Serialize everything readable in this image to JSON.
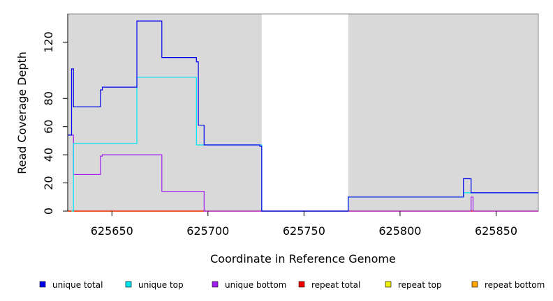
{
  "chart_data": {
    "type": "line",
    "title": "",
    "xlabel": "Coordinate in Reference Genome",
    "ylabel": "Read Coverage Depth",
    "xlim": [
      625627,
      625872
    ],
    "ylim": [
      0,
      140
    ],
    "x_ticks": [
      625650,
      625700,
      625750,
      625800,
      625850
    ],
    "x_tick_labels": [
      "625650",
      "625700",
      "625750",
      "625800",
      "625850"
    ],
    "y_ticks": [
      0,
      20,
      40,
      60,
      80,
      120
    ],
    "y_tick_labels": [
      "0",
      "20",
      "40",
      "60",
      "80",
      "120"
    ],
    "grid": false,
    "legend_position": "bottom",
    "shaded_regions": [
      {
        "x0": 625627,
        "x1": 625728,
        "color": "#d9d9d9"
      },
      {
        "x0": 625773,
        "x1": 625872,
        "color": "#d9d9d9"
      }
    ],
    "series": [
      {
        "name": "unique total",
        "color": "#0000ee",
        "steps": [
          [
            625627,
            54
          ],
          [
            625629,
            101
          ],
          [
            625630,
            74
          ],
          [
            625644,
            86
          ],
          [
            625645,
            88
          ],
          [
            625663,
            135
          ],
          [
            625676,
            109
          ],
          [
            625694,
            106
          ],
          [
            625695,
            61
          ],
          [
            625698,
            47
          ],
          [
            625727,
            46
          ],
          [
            625728,
            0
          ],
          [
            625773,
            10
          ],
          [
            625833,
            23
          ],
          [
            625837,
            13
          ],
          [
            625872,
            13
          ]
        ]
      },
      {
        "name": "unique top",
        "color": "#00e5ee",
        "steps": [
          [
            625629,
            0
          ],
          [
            625630,
            48
          ],
          [
            625663,
            95
          ],
          [
            625694,
            47
          ],
          [
            625728,
            0
          ],
          [
            625773,
            10
          ],
          [
            625833,
            13
          ],
          [
            625872,
            13
          ]
        ]
      },
      {
        "name": "unique bottom",
        "color": "#a020f0",
        "steps": [
          [
            625627,
            54
          ],
          [
            625630,
            26
          ],
          [
            625644,
            39
          ],
          [
            625645,
            40
          ],
          [
            625676,
            14
          ],
          [
            625698,
            0
          ],
          [
            625773,
            0
          ],
          [
            625837,
            10
          ],
          [
            625838,
            0
          ],
          [
            625872,
            0
          ]
        ]
      },
      {
        "name": "repeat total",
        "color": "#ee0000",
        "steps": [
          [
            625627,
            0
          ],
          [
            625872,
            0
          ]
        ]
      },
      {
        "name": "repeat top",
        "color": "#eeee00",
        "steps": [
          [
            625627,
            0
          ],
          [
            625872,
            0
          ]
        ]
      },
      {
        "name": "repeat bottom",
        "color": "#ffa500",
        "steps": [
          [
            625627,
            0
          ],
          [
            625872,
            0
          ]
        ]
      }
    ]
  }
}
